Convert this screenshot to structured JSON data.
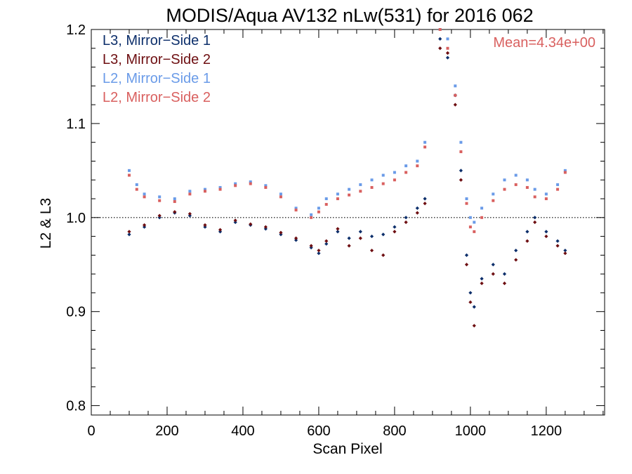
{
  "chart_data": {
    "type": "scatter",
    "title": "MODIS/Aqua AV132 nLw(531) for 2016 062",
    "xlabel": "Scan Pixel",
    "ylabel": "L2 & L3",
    "xlim": [
      0,
      1354
    ],
    "ylim": [
      0.79,
      1.2
    ],
    "x_ticks": [
      0,
      200,
      400,
      600,
      800,
      1000,
      1200
    ],
    "x_tick_labels": [
      "0",
      "200",
      "400",
      "600",
      "800",
      "1000",
      "1200"
    ],
    "y_ticks": [
      0.8,
      0.9,
      1.0,
      1.1,
      1.2
    ],
    "y_tick_labels": [
      "0.8",
      "0.9",
      "1.0",
      "1.1",
      "1.2"
    ],
    "reference_line": 1.0,
    "legend_position": "top-left",
    "annotation": "Mean=4.34e+00",
    "annotation_color": "#d9605f",
    "series": [
      {
        "name": "L3, Mirror−Side 1",
        "color": "#0d2f6b",
        "marker": "diamond",
        "x": [
          100,
          140,
          180,
          220,
          260,
          300,
          340,
          380,
          420,
          460,
          500,
          540,
          580,
          600,
          620,
          650,
          680,
          710,
          740,
          770,
          800,
          830,
          860,
          880,
          920,
          940,
          960,
          975,
          990,
          1000,
          1010,
          1030,
          1060,
          1090,
          1120,
          1150,
          1170,
          1200,
          1230,
          1250
        ],
        "y": [
          0.982,
          0.99,
          1.0,
          1.005,
          1.002,
          0.99,
          0.985,
          0.995,
          0.992,
          0.988,
          0.982,
          0.976,
          0.968,
          0.962,
          0.972,
          0.985,
          0.978,
          0.985,
          0.98,
          0.982,
          0.99,
          1.0,
          1.01,
          1.02,
          1.19,
          1.17,
          1.13,
          1.05,
          0.96,
          0.92,
          0.905,
          0.935,
          0.95,
          0.94,
          0.965,
          0.985,
          1.0,
          0.985,
          0.975,
          0.965
        ]
      },
      {
        "name": "L3, Mirror−Side 2",
        "color": "#6e0f12",
        "marker": "diamond",
        "x": [
          100,
          140,
          180,
          220,
          260,
          300,
          340,
          380,
          420,
          460,
          500,
          540,
          580,
          600,
          620,
          650,
          680,
          710,
          740,
          770,
          800,
          830,
          860,
          880,
          920,
          940,
          960,
          975,
          990,
          1000,
          1010,
          1030,
          1060,
          1090,
          1120,
          1150,
          1170,
          1200,
          1230,
          1250
        ],
        "y": [
          0.985,
          0.992,
          1.002,
          1.006,
          1.004,
          0.992,
          0.987,
          0.997,
          0.993,
          0.99,
          0.984,
          0.978,
          0.97,
          0.965,
          0.975,
          0.988,
          0.97,
          0.978,
          0.965,
          0.96,
          0.985,
          0.995,
          1.005,
          1.015,
          1.18,
          1.175,
          1.12,
          1.04,
          0.95,
          0.91,
          0.885,
          0.93,
          0.94,
          0.93,
          0.955,
          0.975,
          0.995,
          0.98,
          0.97,
          0.962
        ]
      },
      {
        "name": "L2, Mirror−Side 1",
        "color": "#6a9be8",
        "marker": "square",
        "x": [
          100,
          120,
          140,
          180,
          220,
          260,
          300,
          340,
          380,
          420,
          460,
          500,
          540,
          580,
          600,
          620,
          650,
          680,
          710,
          740,
          770,
          800,
          830,
          860,
          880,
          920,
          940,
          960,
          975,
          990,
          1000,
          1010,
          1030,
          1060,
          1090,
          1120,
          1150,
          1170,
          1200,
          1230,
          1250
        ],
        "y": [
          1.05,
          1.035,
          1.025,
          1.022,
          1.02,
          1.028,
          1.03,
          1.032,
          1.036,
          1.038,
          1.034,
          1.025,
          1.01,
          1.003,
          1.01,
          1.02,
          1.025,
          1.03,
          1.035,
          1.04,
          1.045,
          1.048,
          1.055,
          1.06,
          1.08,
          1.2,
          1.19,
          1.14,
          1.08,
          1.02,
          1.0,
          0.995,
          1.01,
          1.025,
          1.04,
          1.045,
          1.04,
          1.03,
          1.025,
          1.035,
          1.05
        ]
      },
      {
        "name": "L2, Mirror−Side 2",
        "color": "#d9605f",
        "marker": "square",
        "x": [
          100,
          120,
          140,
          180,
          220,
          260,
          300,
          340,
          380,
          420,
          460,
          500,
          540,
          580,
          600,
          620,
          650,
          680,
          710,
          740,
          770,
          800,
          830,
          860,
          880,
          920,
          940,
          960,
          975,
          990,
          1000,
          1010,
          1030,
          1060,
          1090,
          1120,
          1150,
          1170,
          1200,
          1230,
          1250
        ],
        "y": [
          1.045,
          1.03,
          1.022,
          1.018,
          1.017,
          1.025,
          1.028,
          1.03,
          1.034,
          1.036,
          1.032,
          1.022,
          1.008,
          1.0,
          1.006,
          1.014,
          1.02,
          1.024,
          1.028,
          1.032,
          1.036,
          1.04,
          1.048,
          1.055,
          1.075,
          1.2,
          1.18,
          1.13,
          1.07,
          1.015,
          0.99,
          0.985,
          1.0,
          1.018,
          1.03,
          1.035,
          1.032,
          1.022,
          1.02,
          1.03,
          1.048
        ]
      }
    ]
  }
}
